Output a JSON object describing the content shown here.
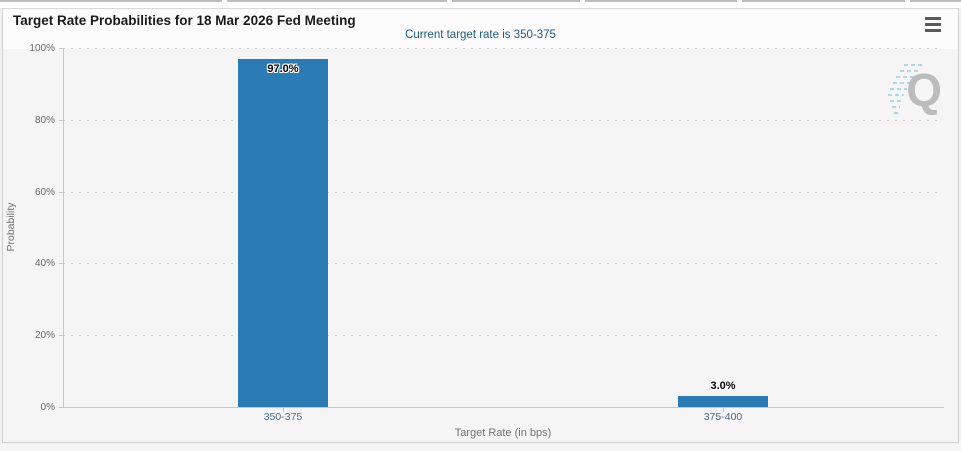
{
  "header": {
    "title": "Target Rate Probabilities for 18 Mar 2026 Fed Meeting",
    "menu_tooltip": "Chart context menu"
  },
  "chart_data": {
    "type": "bar",
    "title": "Target Rate Probabilities for 18 Mar 2026 Fed Meeting",
    "subtitle": "Current target rate is 350-375",
    "categories": [
      "350-375",
      "375-400"
    ],
    "values": [
      97.0,
      3.0
    ],
    "value_labels": [
      "97.0%",
      "3.0%"
    ],
    "xlabel": "Target Rate (in bps)",
    "ylabel": "Probability",
    "ylim": [
      0,
      100
    ],
    "ytick_labels": [
      "0%",
      "20%",
      "40%",
      "60%",
      "80%",
      "100%"
    ],
    "grid": true,
    "legend": "none",
    "bar_color": "#2b7cb5"
  },
  "watermark": {
    "letter": "Q"
  },
  "colors": {
    "bar": "#2b7cb5",
    "subtitle": "#1e5a82",
    "category_label": "#44688c",
    "axis": "#c6c6c6",
    "plot_bg": "#f5f5f6",
    "header_bg": "#fcfcfc"
  }
}
